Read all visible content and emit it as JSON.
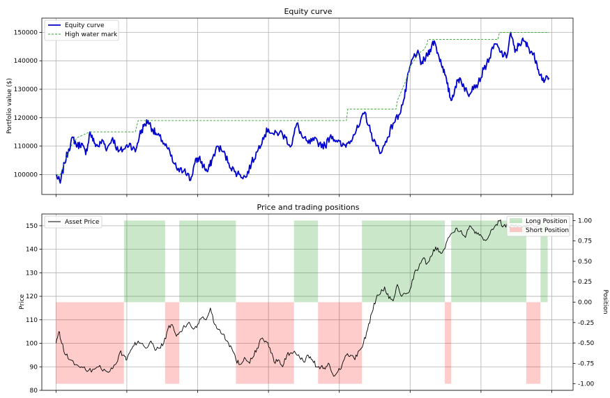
{
  "charts": [
    {
      "type": "line",
      "title": "Equity curve",
      "ylabel": "Portfolio value ($)",
      "xlim": [
        -20,
        730
      ],
      "ylim": [
        93000,
        155000
      ],
      "grid": true,
      "legend_placement": "upper-left",
      "yticks": [
        100000,
        110000,
        120000,
        130000,
        140000,
        150000
      ],
      "yticklabels": [
        "100000",
        "110000",
        "120000",
        "130000",
        "140000",
        "150000"
      ],
      "series": [
        {
          "name": "Equity curve",
          "color": "#0000cc",
          "x": [
            0,
            6,
            12,
            18,
            24,
            30,
            36,
            42,
            48,
            54,
            60,
            66,
            72,
            80,
            88,
            96,
            104,
            112,
            118,
            124,
            130,
            136,
            142,
            150,
            158,
            166,
            174,
            182,
            190,
            196,
            202,
            208,
            214,
            220,
            228,
            236,
            244,
            252,
            260,
            268,
            276,
            284,
            292,
            300,
            308,
            316,
            324,
            332,
            340,
            348,
            356,
            364,
            372,
            380,
            388,
            396,
            404,
            412,
            420,
            428,
            436,
            444,
            452,
            460,
            468,
            476,
            484,
            492,
            498,
            504,
            510,
            516,
            522,
            528,
            534,
            540,
            546,
            552,
            558,
            564,
            570,
            576,
            582,
            588,
            596,
            604,
            612,
            620,
            628,
            636,
            642,
            648,
            654,
            660,
            666,
            672,
            678,
            684,
            690,
            696
          ],
          "values": [
            100000,
            97000,
            104000,
            109000,
            113000,
            110000,
            111000,
            107000,
            115000,
            111000,
            110000,
            112000,
            109000,
            113000,
            108000,
            109000,
            111000,
            108000,
            114000,
            117000,
            119000,
            116000,
            114000,
            112000,
            109000,
            104000,
            101000,
            102000,
            98000,
            104000,
            106000,
            103000,
            101000,
            105000,
            110000,
            108000,
            104000,
            101000,
            100000,
            99000,
            104000,
            108000,
            113000,
            116000,
            114000,
            115000,
            113000,
            110000,
            118000,
            113000,
            111000,
            112000,
            111000,
            110000,
            114000,
            112000,
            110000,
            111000,
            114000,
            117000,
            122000,
            115000,
            110000,
            108000,
            113000,
            118000,
            121000,
            127000,
            136000,
            141000,
            143000,
            139000,
            141000,
            144000,
            147000,
            142000,
            138000,
            132000,
            126000,
            131000,
            134000,
            131000,
            128000,
            131000,
            132000,
            137000,
            141000,
            146000,
            143000,
            141000,
            150000,
            143000,
            146000,
            147000,
            145000,
            143000,
            140000,
            135000,
            133000,
            134000
          ]
        },
        {
          "name": "High water mark",
          "color": "#2ca02c",
          "x": [
            0,
            6,
            12,
            18,
            30,
            48,
            112,
            116,
            118,
            406,
            410,
            412,
            480,
            482,
            494,
            500,
            508,
            514,
            520,
            524,
            525,
            624,
            626,
            636,
            637,
            696
          ],
          "values": [
            100000,
            100000,
            104000,
            109000,
            113000,
            115000,
            115000,
            119000,
            119000,
            119000,
            119000,
            123000,
            123000,
            126000,
            133000,
            138000,
            141000,
            143000,
            144000,
            146000,
            147500,
            147500,
            150000,
            150000,
            150000,
            150000
          ]
        }
      ]
    },
    {
      "type": "line",
      "title": "Price and trading positions",
      "ylabel": "Price",
      "y2label": "Position",
      "xlim": [
        -20,
        730
      ],
      "ylim": [
        80,
        155
      ],
      "y2lim": [
        -1.08,
        1.08
      ],
      "grid": true,
      "legend_placement": "upper-left",
      "yticks": [
        80,
        90,
        100,
        110,
        120,
        130,
        140,
        150
      ],
      "yticklabels": [
        "80",
        "90",
        "100",
        "110",
        "120",
        "130",
        "140",
        "150"
      ],
      "y2ticks": [
        -1.0,
        -0.75,
        -0.5,
        -0.25,
        0.0,
        0.25,
        0.5,
        0.75,
        1.0
      ],
      "y2ticklabels": [
        "-1.00",
        "-0.75",
        "-0.50",
        "-0.25",
        "0.00",
        "0.25",
        "0.50",
        "0.75",
        "1.00"
      ],
      "series": [
        {
          "name": "Asset Price",
          "color": "#000000",
          "x": [
            0,
            4,
            8,
            14,
            20,
            28,
            36,
            44,
            52,
            60,
            68,
            76,
            84,
            90,
            96,
            100,
            104,
            110,
            116,
            122,
            128,
            134,
            140,
            146,
            152,
            158,
            164,
            170,
            176,
            182,
            188,
            194,
            200,
            206,
            212,
            218,
            224,
            230,
            236,
            242,
            248,
            254,
            260,
            266,
            272,
            278,
            284,
            290,
            296,
            302,
            308,
            314,
            320,
            326,
            332,
            338,
            344,
            350,
            356,
            362,
            368,
            374,
            380,
            386,
            392,
            398,
            404,
            410,
            416,
            422,
            428,
            434,
            440,
            446,
            452,
            458,
            464,
            470,
            476,
            482,
            488,
            494,
            500,
            506,
            512,
            518,
            524,
            530,
            536,
            542,
            548,
            554,
            560,
            566,
            572,
            578,
            584,
            590,
            596,
            602,
            608,
            614,
            620,
            626,
            632,
            638,
            644,
            650,
            656,
            662,
            668,
            674,
            680
          ],
          "values": [
            100,
            105,
            100,
            95,
            93,
            91,
            90,
            88,
            89,
            90,
            89,
            88,
            91,
            96,
            95,
            93,
            96,
            99,
            101,
            100,
            98,
            101,
            97,
            98,
            100,
            106,
            108,
            103,
            105,
            107,
            109,
            106,
            108,
            111,
            110,
            115,
            108,
            106,
            104,
            101,
            98,
            93,
            91,
            94,
            92,
            94,
            98,
            102,
            101,
            98,
            92,
            93,
            90,
            95,
            96,
            96,
            94,
            92,
            95,
            93,
            90,
            90,
            89,
            91,
            86,
            88,
            91,
            95,
            95,
            93,
            97,
            100,
            106,
            113,
            119,
            121,
            124,
            119,
            118,
            125,
            120,
            121,
            123,
            130,
            132,
            136,
            134,
            137,
            141,
            139,
            140,
            145,
            147,
            149,
            148,
            145,
            150,
            148,
            147,
            145,
            144,
            148,
            150,
            152,
            150,
            150,
            150,
            150,
            150,
            150,
            150,
            150,
            150
          ]
        }
      ],
      "regions": [
        {
          "name": "Long Position",
          "color": "#2ca02c",
          "value": 1.0,
          "spans": [
            [
              96,
              154
            ],
            [
              174,
              254
            ],
            [
              336,
              370
            ],
            [
              432,
              549
            ],
            [
              558,
              664
            ],
            [
              684,
              694
            ]
          ]
        },
        {
          "name": "Short Position",
          "color": "#ff0000",
          "value": -1.0,
          "spans": [
            [
              0,
              96
            ],
            [
              154,
              174
            ],
            [
              254,
              336
            ],
            [
              370,
              432
            ],
            [
              549,
              558
            ],
            [
              664,
              684
            ]
          ]
        }
      ]
    }
  ]
}
